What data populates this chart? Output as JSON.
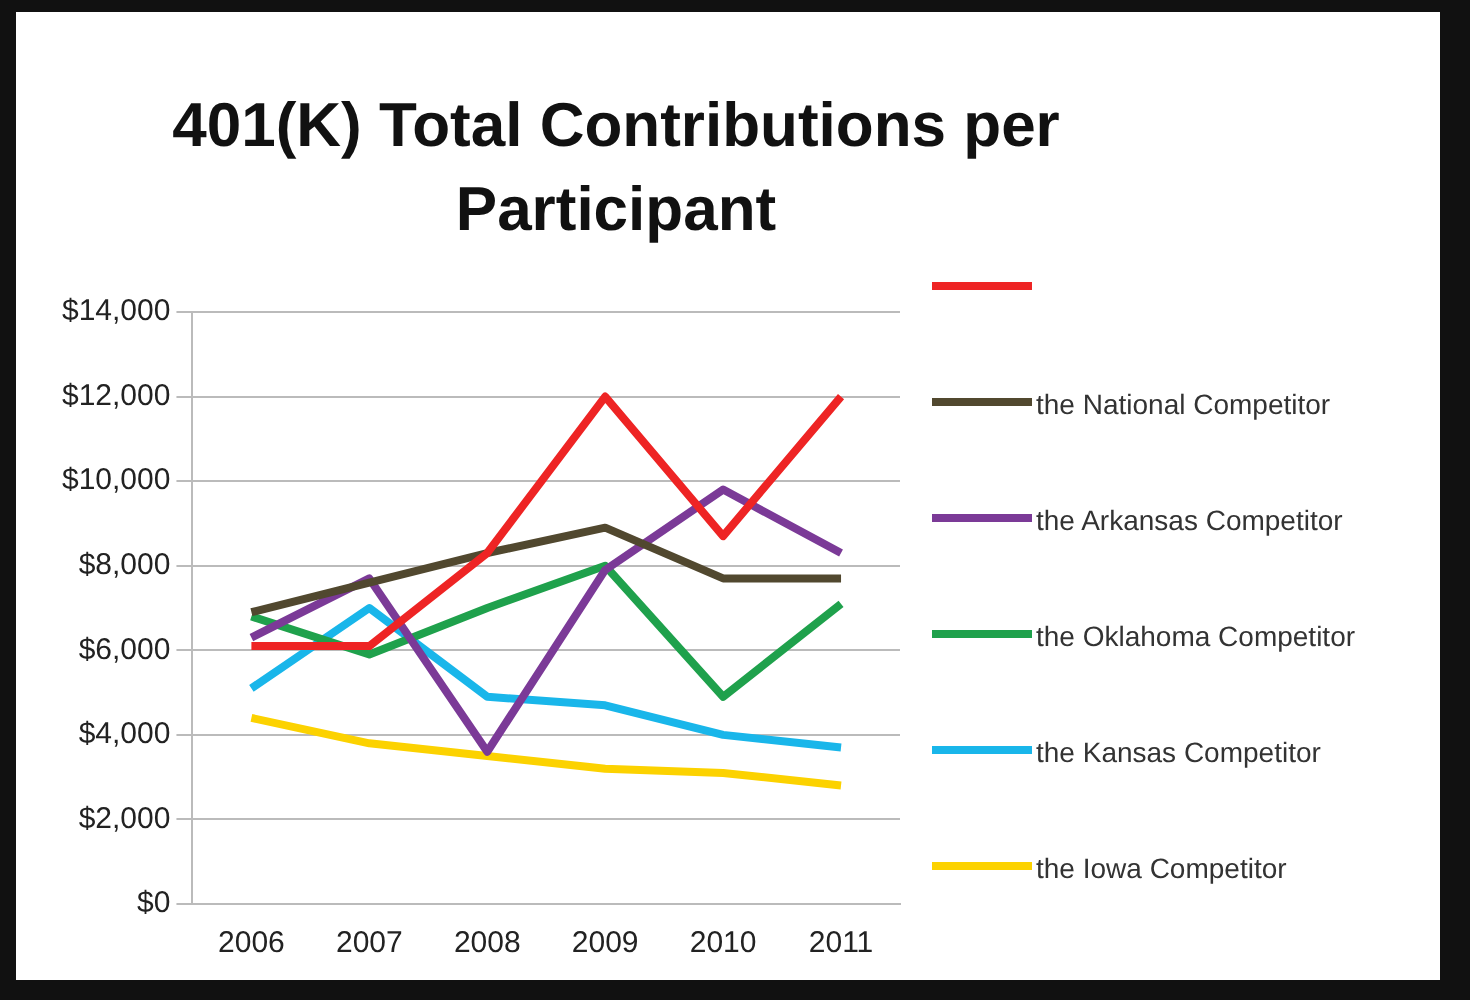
{
  "chart_data": {
    "type": "line",
    "title": "401(K) Total Contributions per Participant",
    "categories": [
      "2006",
      "2007",
      "2008",
      "2009",
      "2010",
      "2011"
    ],
    "series": [
      {
        "color": "#ee2424",
        "values": [
          6100,
          6100,
          8300,
          12000,
          8700,
          12000
        ]
      },
      {
        "name": "the National Competitor",
        "color": "#51482f",
        "values": [
          6900,
          7600,
          8300,
          8900,
          7700,
          7700
        ]
      },
      {
        "name": "the Arkansas Competitor",
        "color": "#7b3a97",
        "values": [
          6300,
          7700,
          3600,
          7900,
          9800,
          8300
        ]
      },
      {
        "name": "the Oklahoma Competitor",
        "color": "#1fa14c",
        "values": [
          6800,
          5900,
          7000,
          8000,
          4900,
          7100
        ]
      },
      {
        "name": "the Kansas Competitor",
        "color": "#19b6ea",
        "values": [
          5100,
          7000,
          4900,
          4700,
          4000,
          3700
        ]
      },
      {
        "name": "the Iowa Competitor",
        "color": "#fcd200",
        "values": [
          4400,
          3800,
          3500,
          3200,
          3100,
          2800
        ]
      }
    ],
    "ylim": [
      0,
      14000
    ],
    "yticks": [
      {
        "value": 0,
        "label": "$0"
      },
      {
        "value": 2000,
        "label": "$2,000"
      },
      {
        "value": 4000,
        "label": "$4,000"
      },
      {
        "value": 6000,
        "label": "$6,000"
      },
      {
        "value": 8000,
        "label": "$8,000"
      },
      {
        "value": 10000,
        "label": "$10,000"
      },
      {
        "value": 12000,
        "label": "$12,000"
      },
      {
        "value": 14000,
        "label": "$14,000"
      }
    ],
    "grid": "y",
    "legend": "right",
    "marker": "none",
    "line_style": "solid"
  }
}
